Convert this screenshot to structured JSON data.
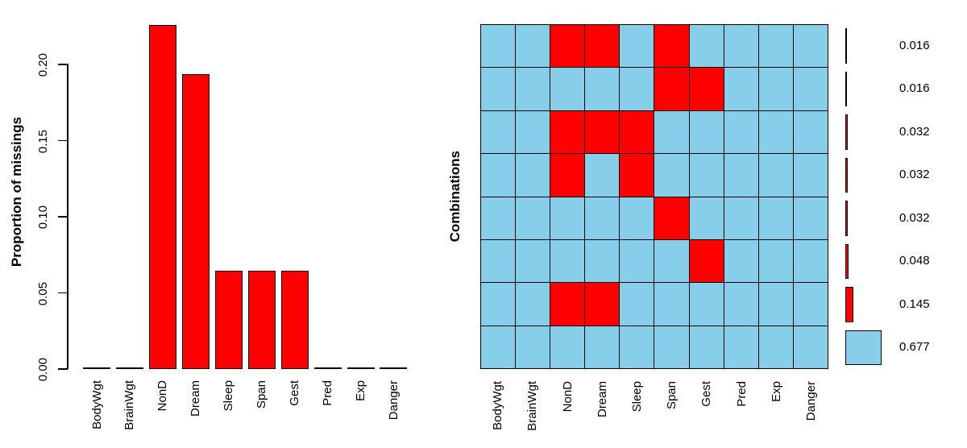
{
  "window": {
    "background": "#ffffff",
    "text_color": "#000000"
  },
  "chart_data": [
    {
      "type": "bar",
      "panel": "left",
      "title": "",
      "ylabel": "Proportion of missings",
      "xlabel": "",
      "categories": [
        "BodyWgt",
        "BrainWgt",
        "NonD",
        "Dream",
        "Sleep",
        "Span",
        "Gest",
        "Pred",
        "Exp",
        "Danger"
      ],
      "values": [
        0,
        0,
        0.2258,
        0.1935,
        0.0645,
        0.0645,
        0.0645,
        0,
        0,
        0
      ],
      "ytick_labels": [
        "0.00",
        "0.05",
        "0.10",
        "0.15",
        "0.20"
      ],
      "ytick_values": [
        0,
        0.05,
        0.1,
        0.15,
        0.2
      ],
      "ylim": [
        0,
        0.2258
      ],
      "bar_color": "#FF0000",
      "bar_border_color": "#000000",
      "grid": false,
      "x_label_rotation_deg": 90
    },
    {
      "type": "heatmap",
      "panel": "right",
      "title": "",
      "ylabel": "Combinations",
      "xlabel": "",
      "categories": [
        "BodyWgt",
        "BrainWgt",
        "NonD",
        "Dream",
        "Sleep",
        "Span",
        "Gest",
        "Pred",
        "Exp",
        "Danger"
      ],
      "cell_colors": {
        "missing": "#FF0000",
        "observed": "#87CEEB",
        "grid_line": "#000000"
      },
      "legend_position": "right",
      "rows": [
        {
          "missing": [
            "NonD",
            "Dream",
            "Span"
          ],
          "proportion": 0.016,
          "label": "0.016"
        },
        {
          "missing": [
            "Span",
            "Gest"
          ],
          "proportion": 0.016,
          "label": "0.016"
        },
        {
          "missing": [
            "NonD",
            "Dream",
            "Sleep"
          ],
          "proportion": 0.032,
          "label": "0.032"
        },
        {
          "missing": [
            "NonD",
            "Sleep"
          ],
          "proportion": 0.032,
          "label": "0.032"
        },
        {
          "missing": [
            "Span"
          ],
          "proportion": 0.032,
          "label": "0.032"
        },
        {
          "missing": [
            "Gest"
          ],
          "proportion": 0.048,
          "label": "0.048"
        },
        {
          "missing": [
            "NonD",
            "Dream"
          ],
          "proportion": 0.145,
          "label": "0.145"
        },
        {
          "missing": [],
          "proportion": 0.677,
          "label": "0.677"
        }
      ]
    }
  ]
}
